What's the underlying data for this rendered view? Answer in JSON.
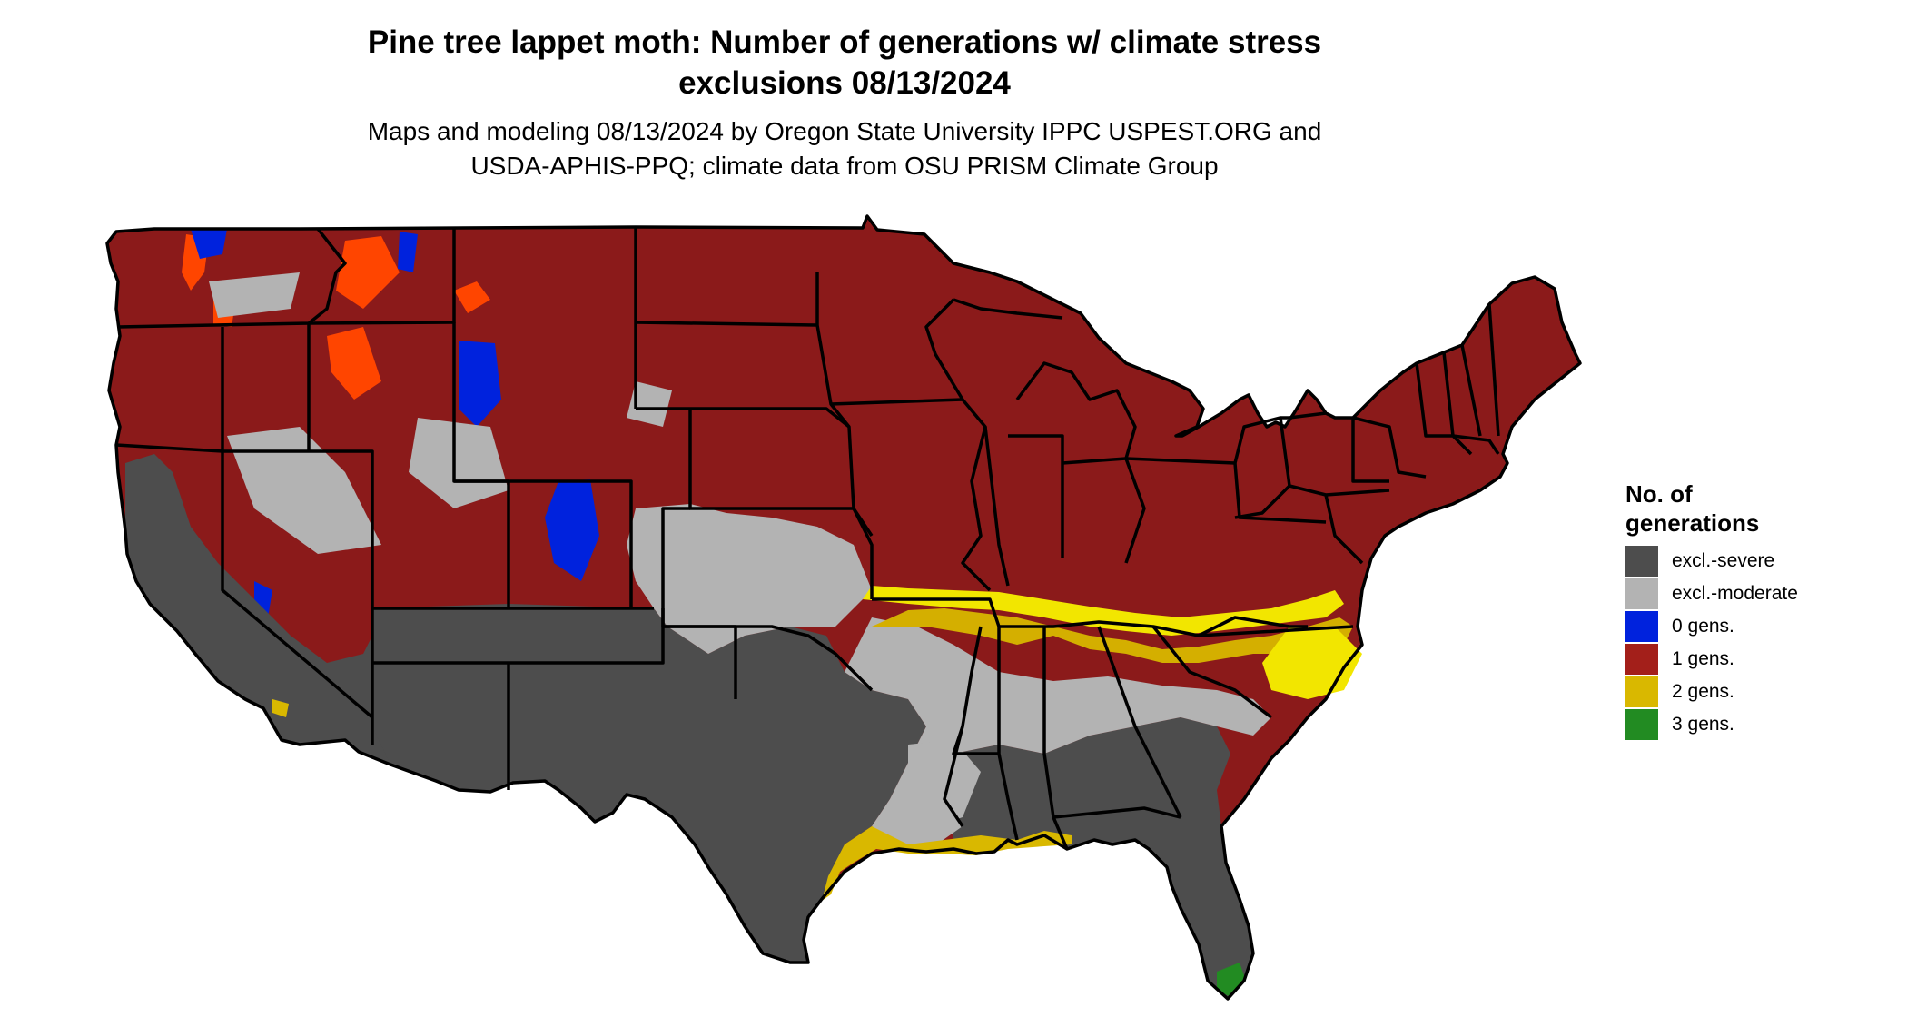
{
  "title": {
    "line1": "Pine tree lappet moth: Number of generations w/ climate stress",
    "line2": "exclusions 08/13/2024"
  },
  "subtitle": {
    "line1": "Maps and modeling 08/13/2024 by Oregon State University IPPC USPEST.ORG and",
    "line2": "USDA-APHIS-PPQ; climate data from OSU PRISM Climate Group"
  },
  "legend": {
    "title_line1": "No. of",
    "title_line2": "generations",
    "items": [
      {
        "label": "excl.-severe",
        "color": "#4d4d4d"
      },
      {
        "label": "excl.-moderate",
        "color": "#b3b3b3"
      },
      {
        "label": "0 gens.",
        "color": "#0022dd"
      },
      {
        "label": "1 gens.",
        "color": "#a31f1a"
      },
      {
        "label": "2 gens.",
        "color": "#d9b800"
      },
      {
        "label": "3 gens.",
        "color": "#228b22"
      }
    ]
  },
  "map_colors": {
    "one_gen_region": "#8b1a1a",
    "severe": "#4d4d4d",
    "moderate": "#b3b3b3",
    "zero_gen": "#0022dd",
    "two_gen_dark": "#d4af00",
    "two_gen_bright": "#f2e600",
    "three_gen": "#228b22",
    "highlands": "#ff4500",
    "borders": "#000000"
  }
}
